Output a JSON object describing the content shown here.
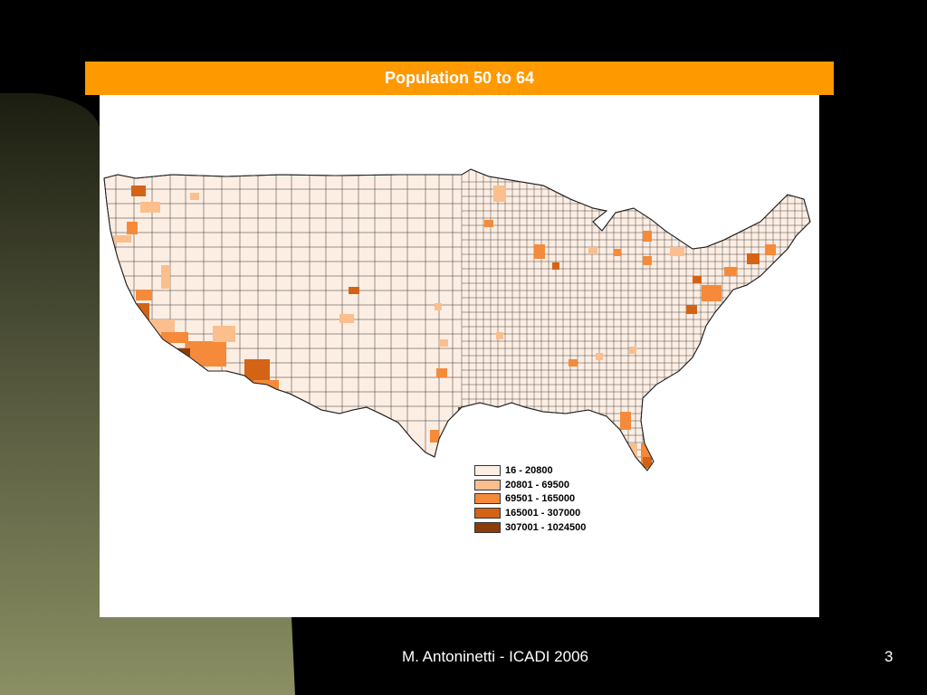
{
  "slide": {
    "title": "Population 50 to 64",
    "footer": "M. Antoninetti - ICADI 2006",
    "page_number": "3"
  },
  "colors": {
    "title_bar": "#ff9900",
    "background": "#000000",
    "side_gradient_top": "#1b1d10",
    "side_gradient_bottom": "#8b8f63"
  },
  "legend": {
    "classes": [
      {
        "label": "16 - 20800",
        "color": "#fdeee3"
      },
      {
        "label": "20801 - 69500",
        "color": "#fbbe8d"
      },
      {
        "label": "69501 - 165000",
        "color": "#f58a3a"
      },
      {
        "label": "165001 - 307000",
        "color": "#d46316"
      },
      {
        "label": "307001 - 1024500",
        "color": "#8a3d0b"
      }
    ]
  }
}
